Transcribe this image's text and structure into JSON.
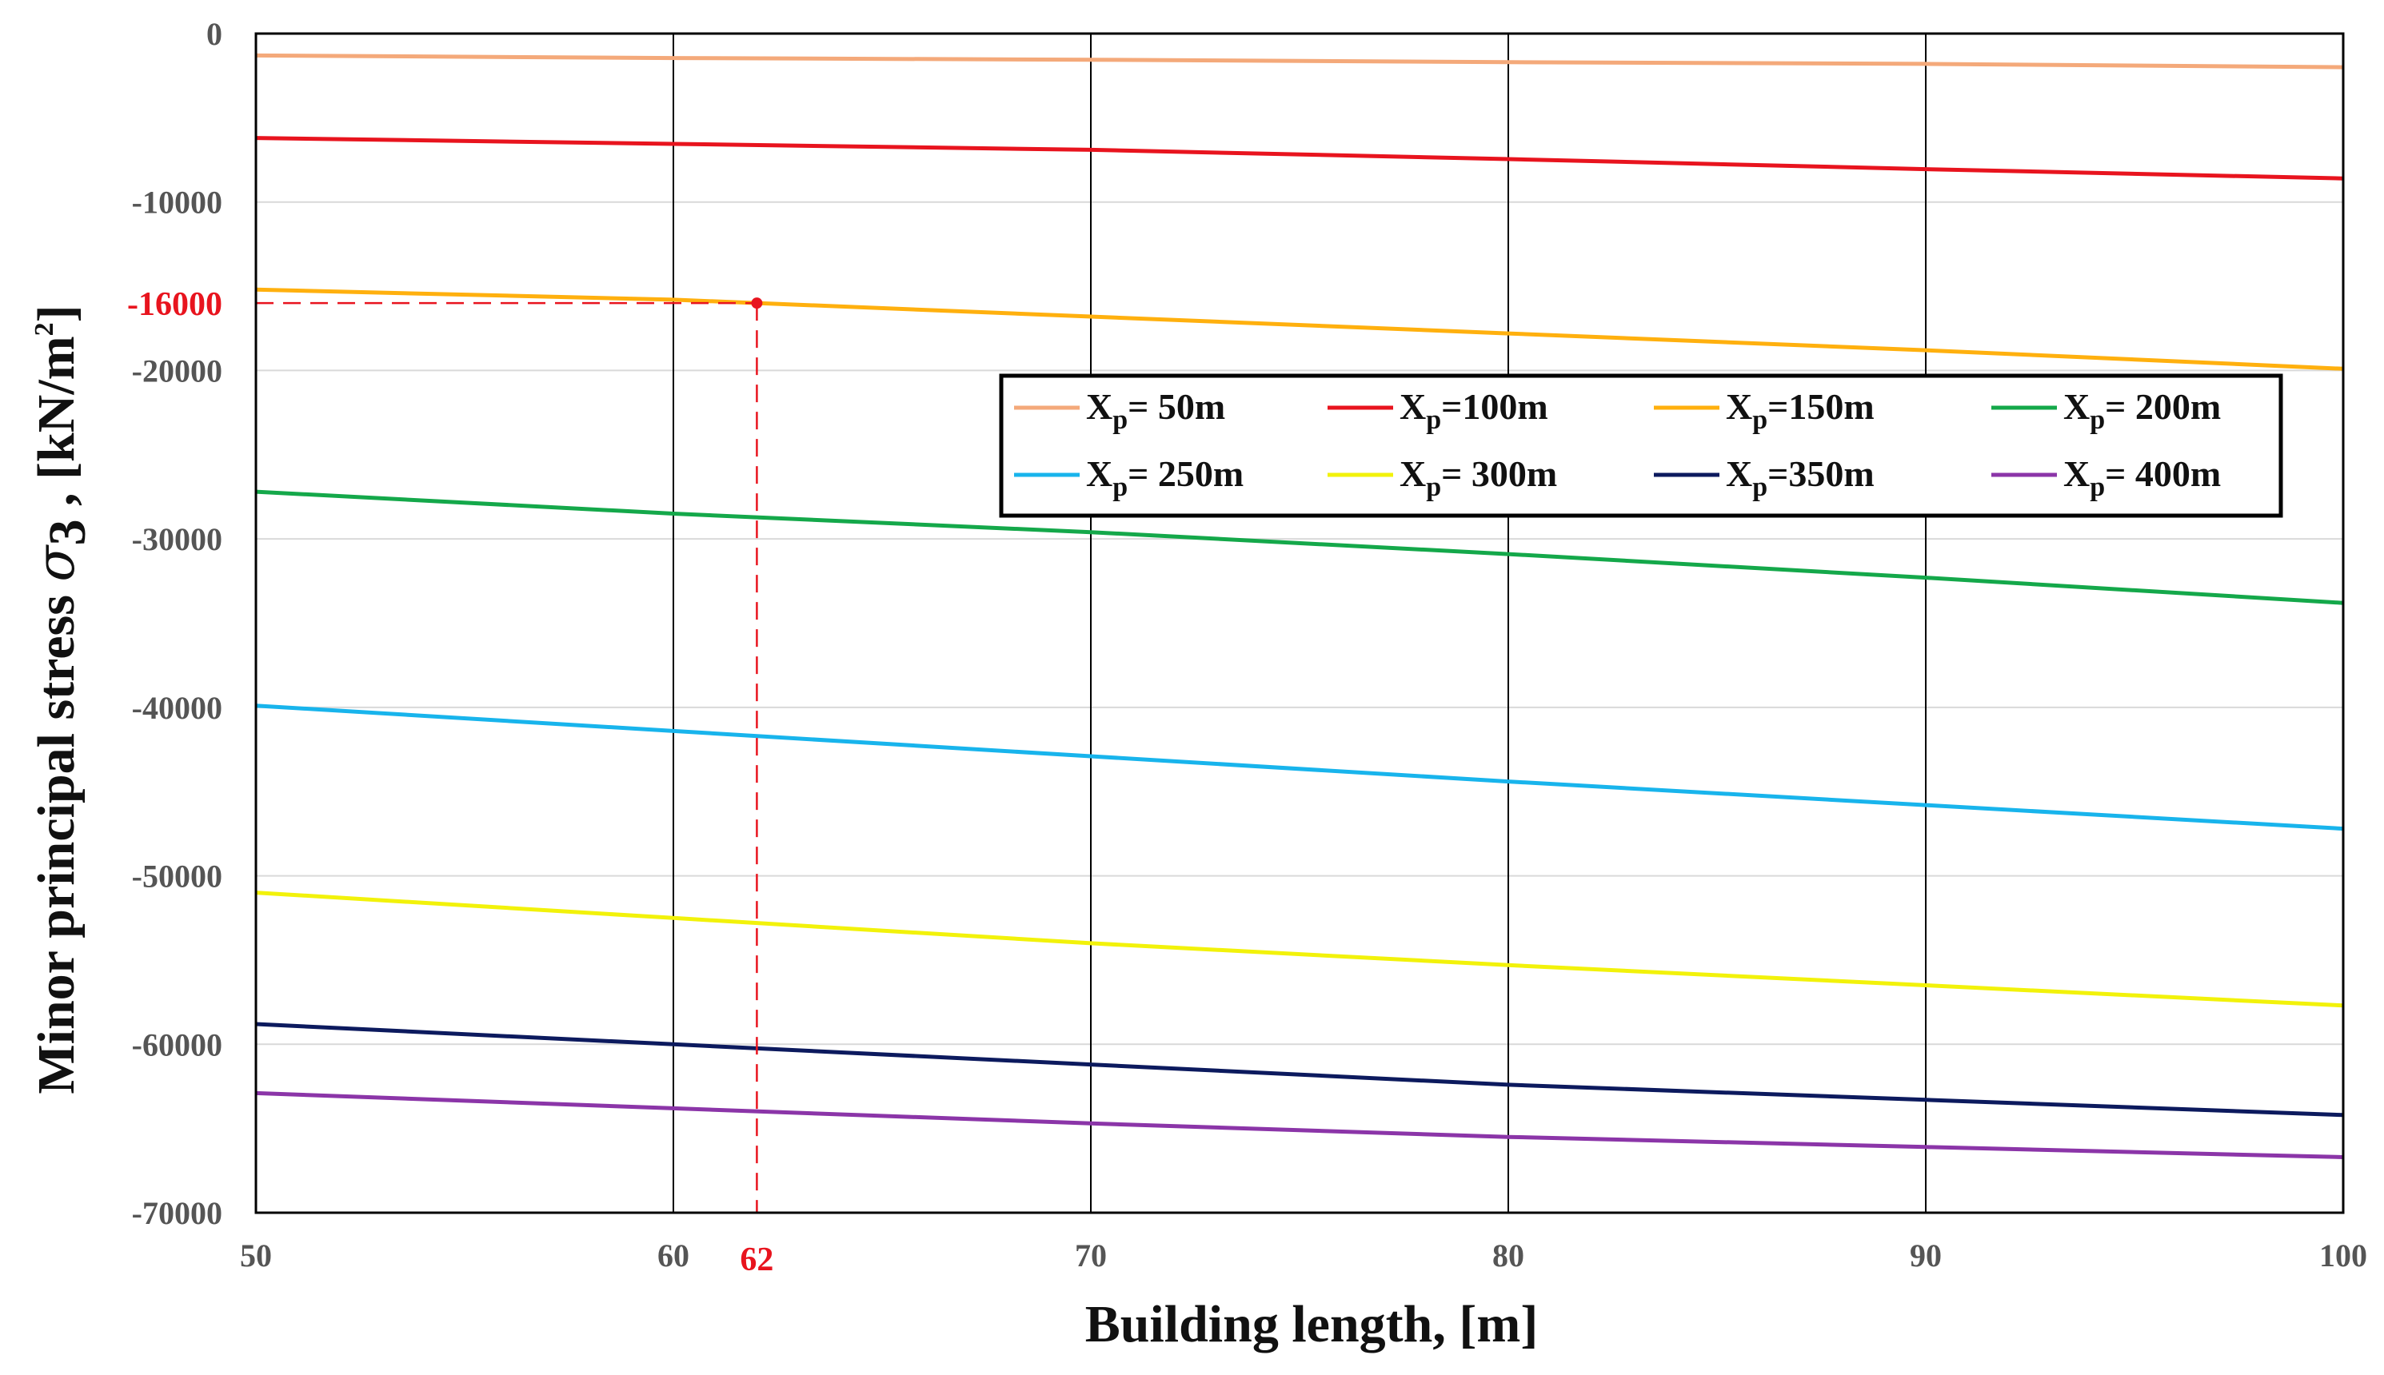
{
  "chart_data": {
    "type": "line",
    "xlabel": "Building length, [m]",
    "ylabel": {
      "main": "Minor principal stress",
      "symbol": "σ",
      "subscript": "3",
      "sep": " , ",
      "unit_prefix": "[kN/m",
      "unit_sup": "2",
      "unit_suffix": "]"
    },
    "xlim": [
      50,
      100
    ],
    "ylim": [
      -70000,
      0
    ],
    "x": [
      50,
      60,
      70,
      80,
      90,
      100
    ],
    "x_ticks": [
      "50",
      "60",
      "70",
      "80",
      "90",
      "100"
    ],
    "y_ticks": [
      "0",
      "-10000",
      "-20000",
      "-30000",
      "-40000",
      "-50000",
      "-60000",
      "-70000"
    ],
    "y_tick_values": [
      0,
      -10000,
      -20000,
      -30000,
      -40000,
      -50000,
      -60000,
      -70000
    ],
    "legend_position": "upper-right",
    "legend_symbol": "X",
    "legend_subscript": "p",
    "series": [
      {
        "name": "Xp = 50m",
        "value_label": "= 50m",
        "color": "#F4A97A",
        "values": [
          -1300,
          -1450,
          -1550,
          -1700,
          -1800,
          -2000
        ]
      },
      {
        "name": "Xp = 100m",
        "value_label": "=100m",
        "color": "#E8141E",
        "values": [
          -6200,
          -6550,
          -6900,
          -7450,
          -8050,
          -8600
        ]
      },
      {
        "name": "Xp = 150m",
        "value_label": "=150m",
        "color": "#FFB00E",
        "values": [
          -15200,
          -15800,
          -16800,
          -17800,
          -18800,
          -19900
        ]
      },
      {
        "name": "Xp = 200m",
        "value_label": "= 200m",
        "color": "#14A84A",
        "values": [
          -27200,
          -28500,
          -29600,
          -30900,
          -32300,
          -33800
        ]
      },
      {
        "name": "Xp = 250m",
        "value_label": "= 250m",
        "color": "#18B4EC",
        "values": [
          -39900,
          -41400,
          -42900,
          -44400,
          -45800,
          -47200
        ]
      },
      {
        "name": "Xp = 300m",
        "value_label": "= 300m",
        "color": "#F2F20A",
        "values": [
          -51000,
          -52500,
          -54000,
          -55300,
          -56500,
          -57700
        ]
      },
      {
        "name": "Xp = 350m",
        "value_label": "=350m",
        "color": "#0C1A5E",
        "values": [
          -58800,
          -60000,
          -61200,
          -62400,
          -63300,
          -64200
        ]
      },
      {
        "name": "Xp = 400m",
        "value_label": "= 400m",
        "color": "#8B35A8",
        "values": [
          -62900,
          -63800,
          -64700,
          -65500,
          -66100,
          -66700
        ]
      }
    ],
    "annotation": {
      "x": 62,
      "y": -16000,
      "x_label": "62",
      "y_label": "-16000",
      "color": "#E8141E",
      "style": "dashed"
    }
  }
}
